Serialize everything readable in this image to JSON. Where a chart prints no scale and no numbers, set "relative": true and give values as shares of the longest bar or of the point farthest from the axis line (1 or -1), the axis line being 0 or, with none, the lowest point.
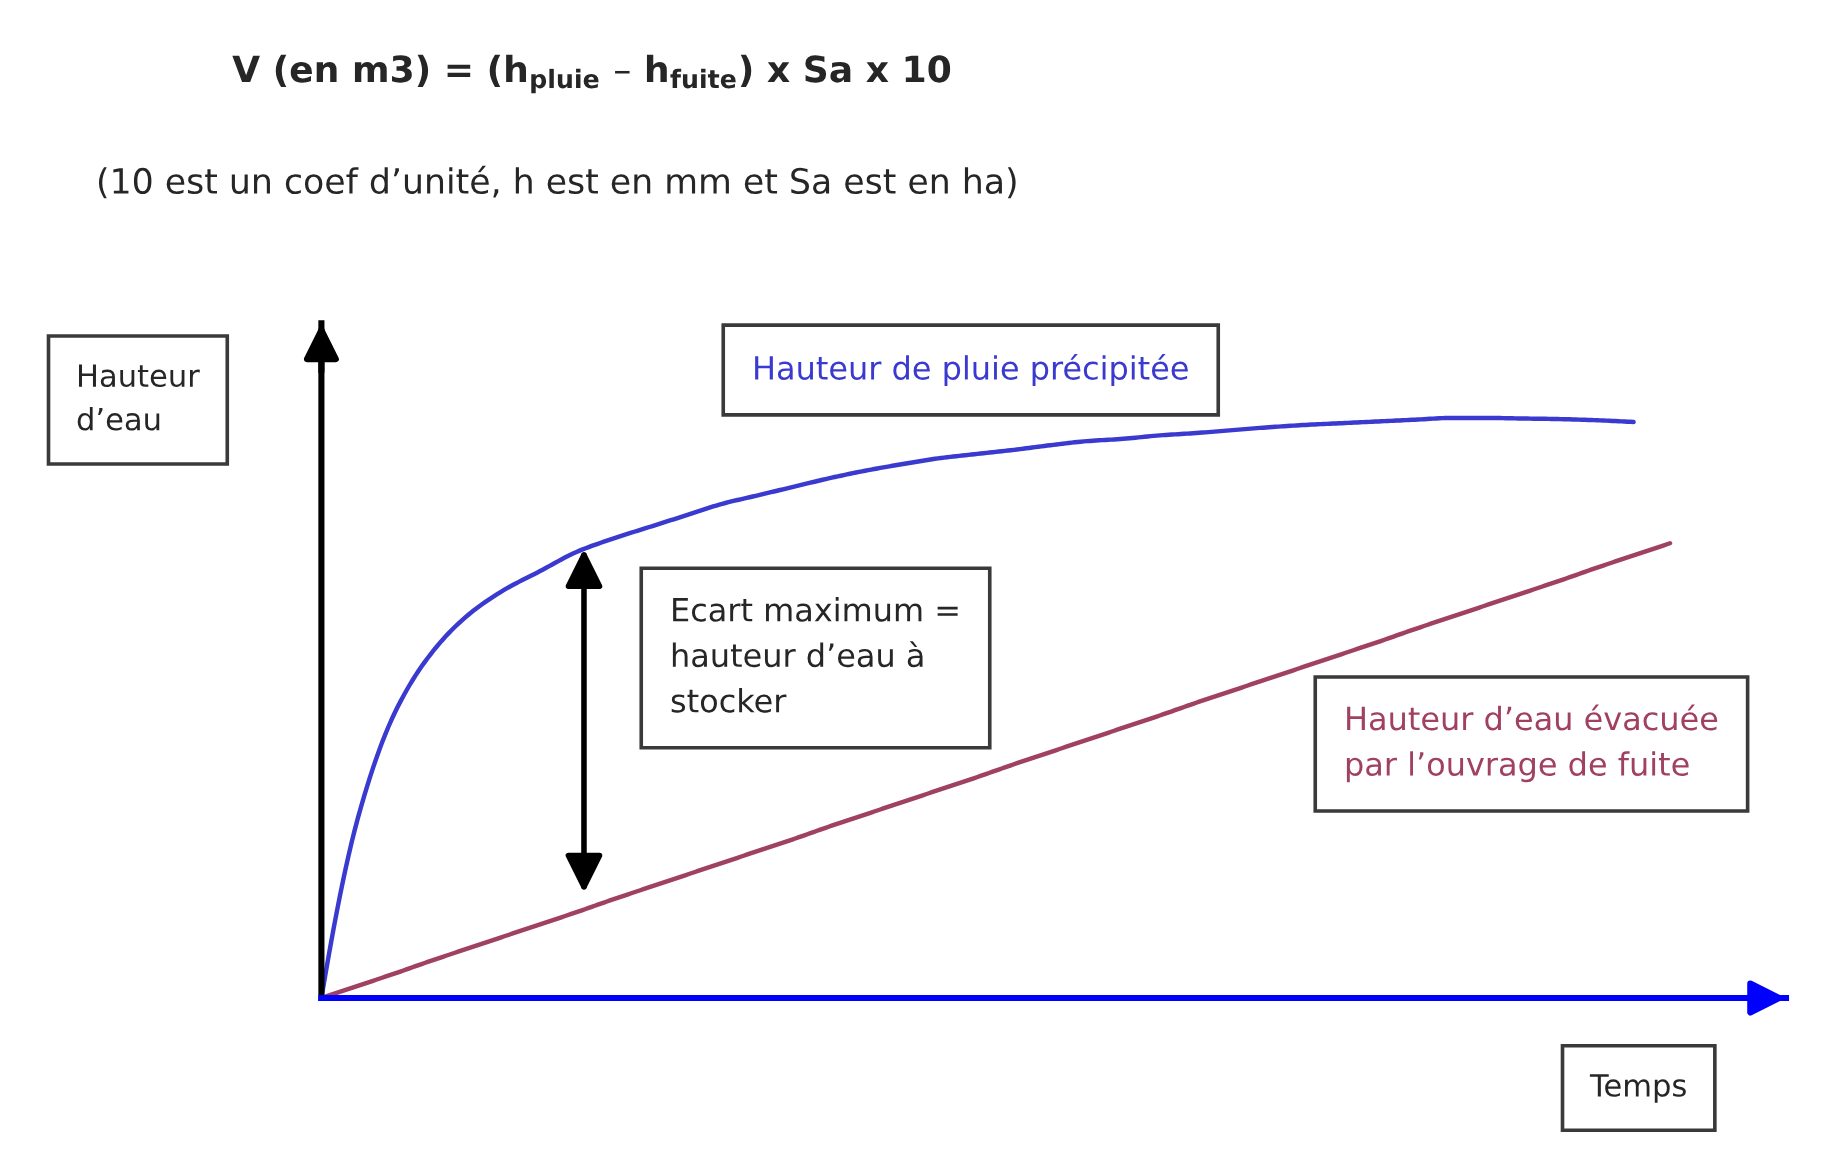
{
  "chart_data": {
    "type": "line",
    "title": "V (en m3) = (h$_{pluie}$ – h$_{fuite}$) x Sa x 10",
    "subtitle": "(10 est un coef d’unité, h est en mm et Sa est en ha)",
    "xlabel": "Temps",
    "ylabel": "Hauteur\nd’eau",
    "relative": true,
    "legend": false,
    "categories": [
      null,
      null,
      null,
      null,
      null,
      null,
      null,
      null,
      null,
      null,
      null,
      null,
      null,
      null,
      null,
      null,
      null,
      null,
      null,
      null,
      null,
      null,
      null,
      null,
      null,
      null,
      null,
      null,
      null,
      null,
      null,
      null,
      null,
      null,
      null,
      null,
      null,
      null
    ],
    "series": [
      {
        "name": "Hauteur de pluie précipitée",
        "color": "#3a3ad0",
        "values": [
          0,
          0.31,
          0.49,
          0.593,
          0.659,
          0.703,
          0.736,
          0.769,
          0.792,
          0.812,
          0.832,
          0.852,
          0.867,
          0.882,
          0.897,
          0.91,
          0.921,
          0.931,
          0.938,
          0.945,
          0.953,
          0.96,
          0.964,
          0.97,
          0.974,
          0.979,
          0.984,
          0.988,
          0.991,
          0.994,
          0.997,
          1,
          1,
          0.999,
          0.998,
          0.996,
          0.993,
          null
        ]
      },
      {
        "name": "Hauteur d’eau évacuée\npar l’ouvrage de fuite",
        "color": "#a04062",
        "values": [
          0,
          0.021,
          0.042,
          0.064,
          0.085,
          0.106,
          0.127,
          0.148,
          0.17,
          0.191,
          0.212,
          0.233,
          0.254,
          0.275,
          0.297,
          0.318,
          0.339,
          0.36,
          0.381,
          0.403,
          0.424,
          0.445,
          0.466,
          0.487,
          0.509,
          0.53,
          0.551,
          0.572,
          0.593,
          0.614,
          0.636,
          0.657,
          0.678,
          0.699,
          0.72,
          0.742,
          0.763,
          0.784
        ]
      }
    ],
    "annotations": [
      "Ecart maximum =\nhauteur d’eau à\nstocker"
    ]
  }
}
